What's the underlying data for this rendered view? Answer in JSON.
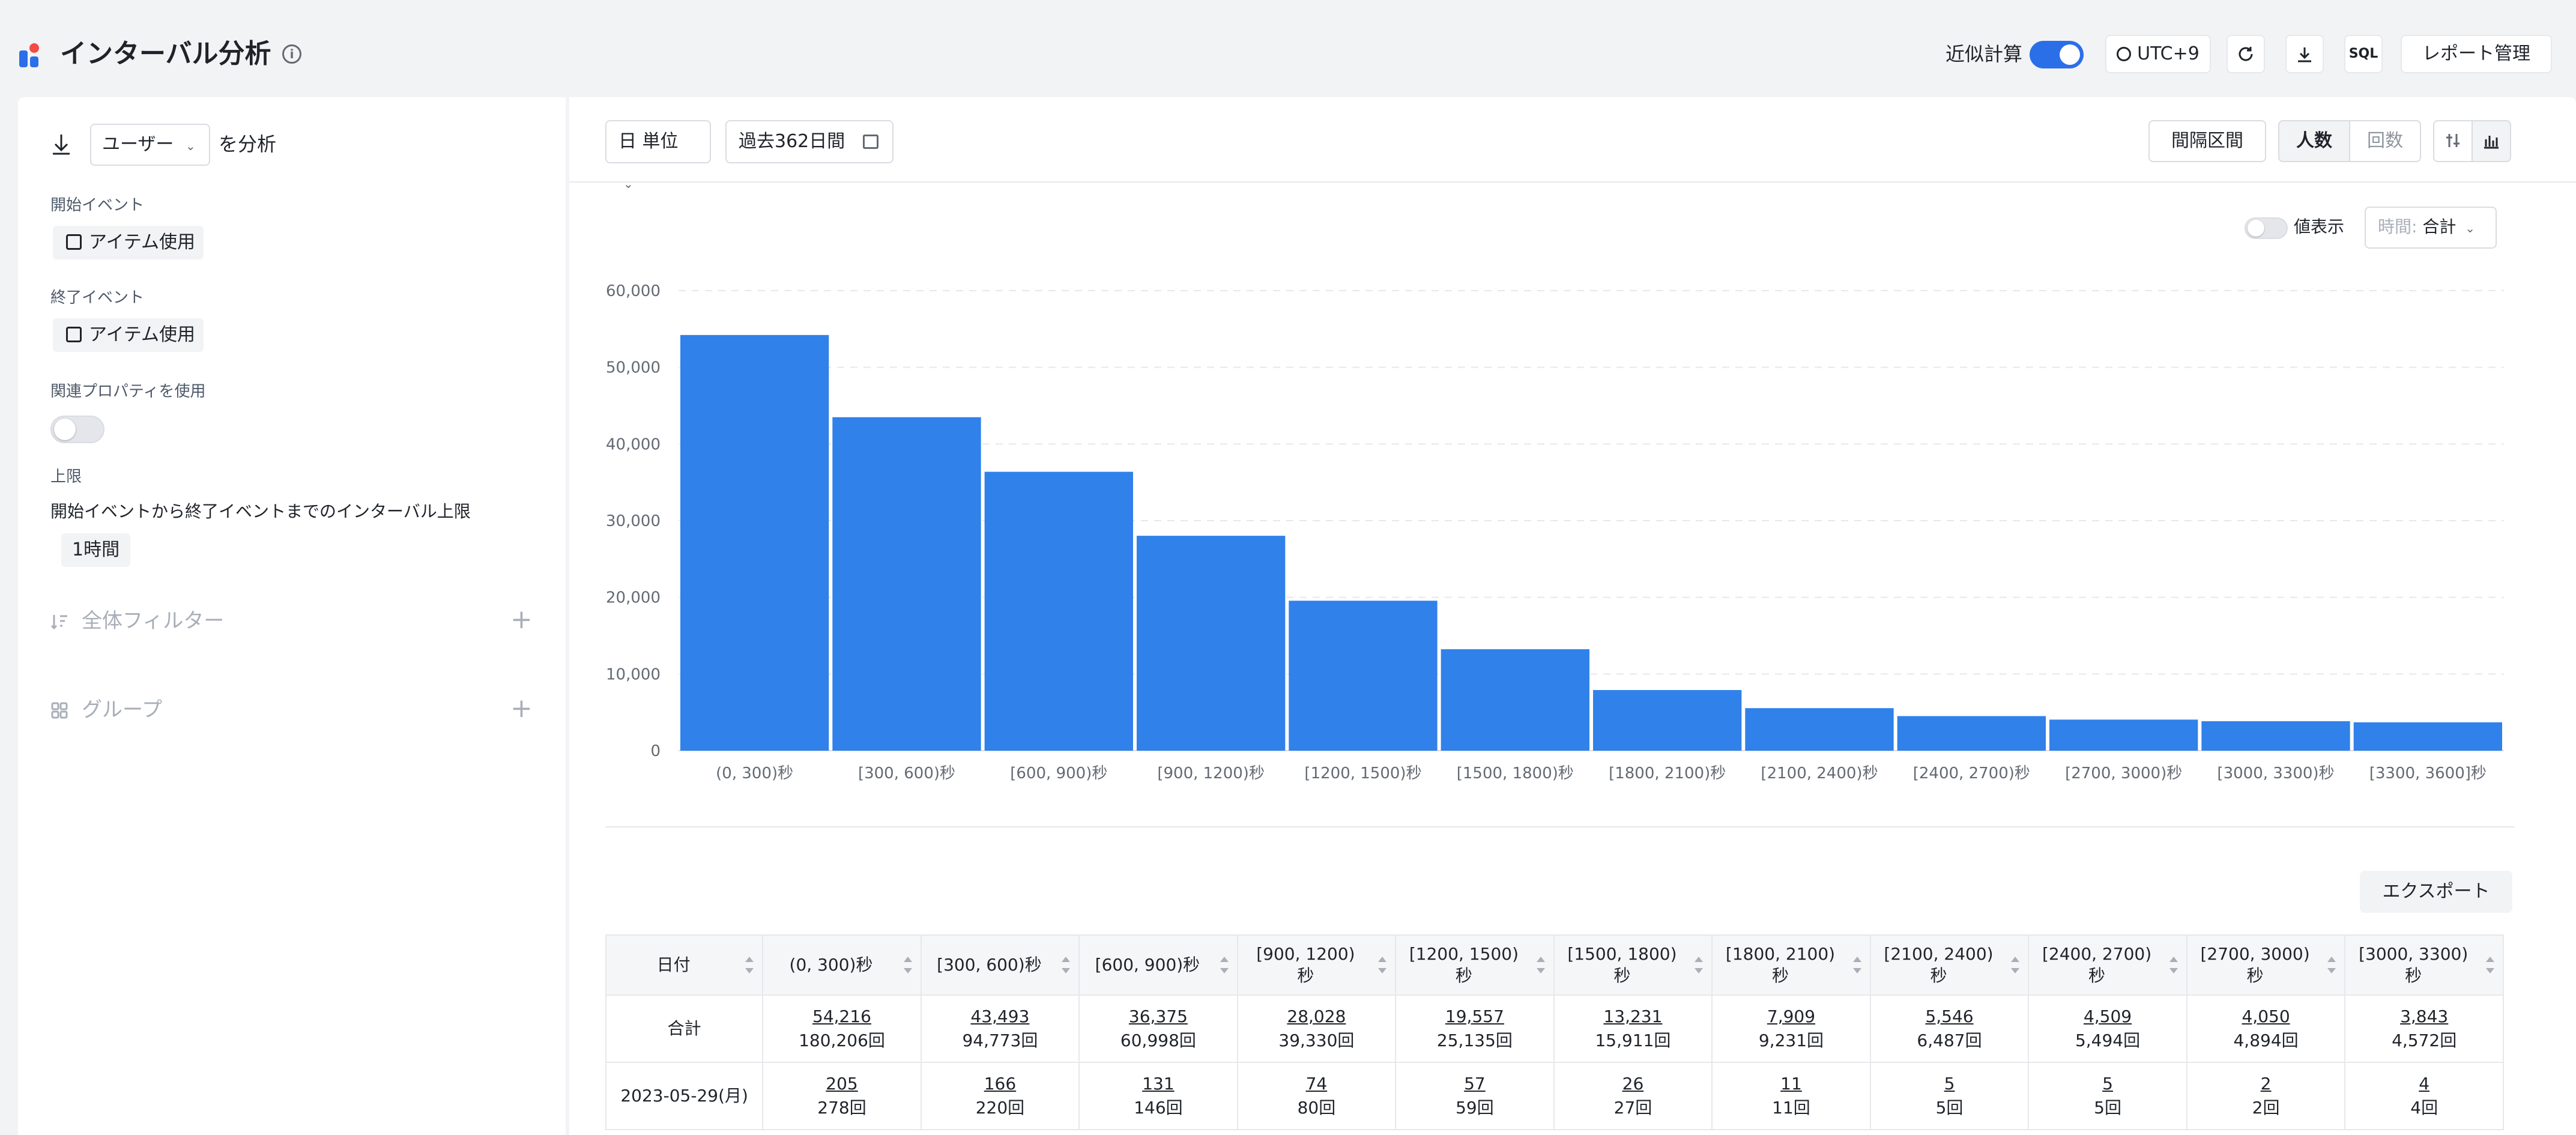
{
  "header": {
    "title": "インターバル分析",
    "approx_label": "近似計算",
    "approx_enabled": true,
    "timezone": "UTC+9",
    "sql_label": "SQL",
    "report_label": "レポート管理",
    "icons": [
      "app-logo-icon",
      "info-icon",
      "globe-icon",
      "refresh-icon",
      "download-icon"
    ]
  },
  "left_panel": {
    "analyze_target": "ユーザー",
    "analyze_suffix": "を分析",
    "start_event_label": "開始イベント",
    "start_event": "アイテム使用",
    "end_event_label": "終了イベント",
    "end_event": "アイテム使用",
    "related_prop_label": "関連プロパティを使用",
    "related_prop_enabled": false,
    "limit_label": "上限",
    "limit_desc": "開始イベントから終了イベントまでのインターバル上限",
    "limit_value": "1時間",
    "global_filter": "全体フィルター",
    "group": "グループ"
  },
  "toolbar": {
    "granularity": "日 単位",
    "date_range": "過去362日間",
    "interval_btn": "間隔区間",
    "people_btn": "人数",
    "count_btn": "回数",
    "value_display": "値表示",
    "time_label": "時間:",
    "time_value": "合計",
    "export_btn": "エクスポート"
  },
  "colors": {
    "bar": "#3081ea",
    "accent": "#2b6fe8"
  },
  "chart_data": {
    "type": "bar",
    "categories": [
      "(0, 300)秒",
      "[300, 600)秒",
      "[600, 900)秒",
      "[900, 1200)秒",
      "[1200, 1500)秒",
      "[1500, 1800)秒",
      "[1800, 2100)秒",
      "[2100, 2400)秒",
      "[2400, 2700)秒",
      "[2700, 3000)秒",
      "[3000, 3300)秒",
      "[3300, 3600]秒"
    ],
    "values": [
      54216,
      43493,
      36375,
      28028,
      19557,
      13231,
      7909,
      5546,
      4509,
      4050,
      3843,
      3700
    ],
    "ylim": [
      0,
      60000
    ],
    "yticks": [
      "0",
      "10,000",
      "20,000",
      "30,000",
      "40,000",
      "50,000",
      "60,000"
    ],
    "grid": true
  },
  "table": {
    "headers": [
      "日付",
      "(0, 300)秒",
      "[300, 600)秒",
      "[600, 900)秒",
      "[900, 1200)\n秒",
      "[1200, 1500)\n秒",
      "[1500, 1800)\n秒",
      "[1800, 2100)\n秒",
      "[2100, 2400)\n秒",
      "[2400, 2700)\n秒",
      "[2700, 3000)\n秒",
      "[3000, 3300)\n秒"
    ],
    "rows": [
      {
        "date": "合計",
        "cells": [
          {
            "users": "54,216",
            "count": "180,206回"
          },
          {
            "users": "43,493",
            "count": "94,773回"
          },
          {
            "users": "36,375",
            "count": "60,998回"
          },
          {
            "users": "28,028",
            "count": "39,330回"
          },
          {
            "users": "19,557",
            "count": "25,135回"
          },
          {
            "users": "13,231",
            "count": "15,911回"
          },
          {
            "users": "7,909",
            "count": "9,231回"
          },
          {
            "users": "5,546",
            "count": "6,487回"
          },
          {
            "users": "4,509",
            "count": "5,494回"
          },
          {
            "users": "4,050",
            "count": "4,894回"
          },
          {
            "users": "3,843",
            "count": "4,572回"
          }
        ]
      },
      {
        "date": "2023-05-29(月)",
        "cells": [
          {
            "users": "205",
            "count": "278回"
          },
          {
            "users": "166",
            "count": "220回"
          },
          {
            "users": "131",
            "count": "146回"
          },
          {
            "users": "74",
            "count": "80回"
          },
          {
            "users": "57",
            "count": "59回"
          },
          {
            "users": "26",
            "count": "27回"
          },
          {
            "users": "11",
            "count": "11回"
          },
          {
            "users": "5",
            "count": "5回"
          },
          {
            "users": "5",
            "count": "5回"
          },
          {
            "users": "2",
            "count": "2回"
          },
          {
            "users": "4",
            "count": "4回"
          }
        ]
      }
    ]
  }
}
